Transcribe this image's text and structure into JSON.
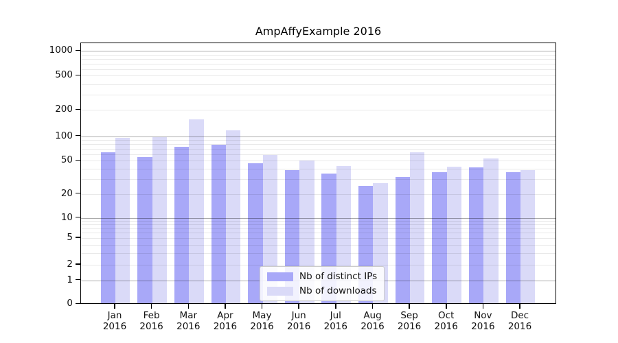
{
  "chart_data": {
    "type": "bar",
    "title": "AmpAffyExample 2016",
    "categories": [
      "Jan",
      "Feb",
      "Mar",
      "Apr",
      "May",
      "Jun",
      "Jul",
      "Aug",
      "Sep",
      "Oct",
      "Nov",
      "Dec"
    ],
    "year_label": "2016",
    "series": [
      {
        "name": "Nb of distinct IPs",
        "color": "#a8a8f8",
        "values": [
          61,
          53,
          71,
          76,
          45,
          37,
          34,
          24,
          31,
          35,
          40,
          35
        ]
      },
      {
        "name": "Nb of downloads",
        "color": "#dadaf8",
        "values": [
          92,
          94,
          150,
          113,
          57,
          48,
          42,
          26,
          61,
          41,
          51,
          37
        ]
      }
    ],
    "y_ticks": [
      0,
      1,
      2,
      5,
      10,
      20,
      50,
      100,
      200,
      500,
      1000
    ],
    "y_scale": "symlog",
    "ylim": [
      0,
      1250
    ],
    "grid": "horizontal major and minor gridlines, drawn over bars",
    "legend_position": "lower center"
  }
}
